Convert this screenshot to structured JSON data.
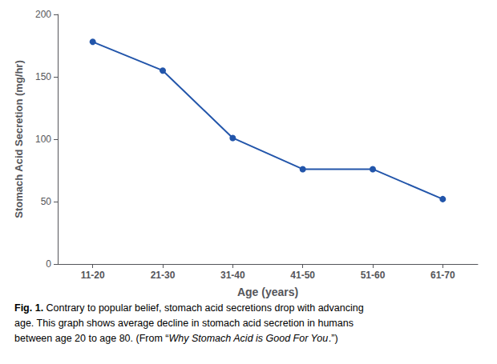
{
  "chart_data": {
    "type": "line",
    "categories": [
      "11-20",
      "21-30",
      "31-40",
      "41-50",
      "51-60",
      "61-70"
    ],
    "values": [
      178,
      155,
      101,
      76,
      76,
      52
    ],
    "color": "#2255aa",
    "marker": "circle",
    "xlabel": "Age (years)",
    "ylabel": "Stomach Acid Secretion (mg/hr)",
    "ylim": [
      0,
      200
    ],
    "yticks": [
      0,
      50,
      100,
      150,
      200
    ],
    "grid": false,
    "caption": [
      "Fig. 1. Contrary to popular belief, stomach acid secretions drop with advancing",
      "age. This graph shows average decline in stomach acid secretion in humans",
      "between age 20 to age 80. (From “Why Stomach Acid is Good For You.”)"
    ]
  }
}
